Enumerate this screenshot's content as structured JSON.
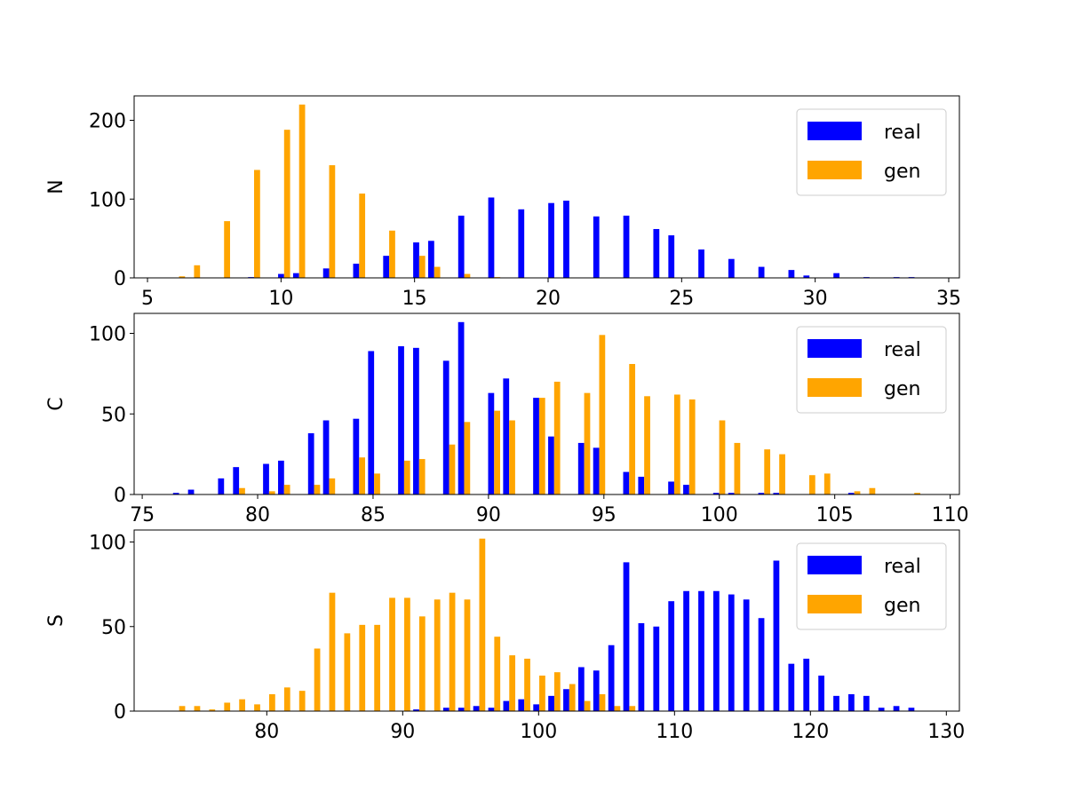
{
  "chart_data": [
    {
      "type": "histogram",
      "ylabel": "N",
      "bins": [
        5.9,
        6.462,
        7.024,
        7.586,
        8.148,
        8.71,
        9.272,
        9.834,
        10.396,
        10.958,
        11.52,
        12.082,
        12.644,
        13.206,
        13.768,
        14.33,
        14.892,
        15.454,
        16.016,
        16.578,
        17.14,
        17.702,
        18.264,
        18.826,
        19.388,
        19.95,
        20.512,
        21.074,
        21.636,
        22.198,
        22.76,
        23.322,
        23.884,
        24.446,
        25.008,
        25.57,
        26.132,
        26.694,
        27.256,
        27.818,
        28.38,
        28.942,
        29.504,
        30.066,
        30.628,
        31.19,
        31.752,
        32.314,
        32.876,
        33.438,
        34.0
      ],
      "series": [
        {
          "name": "real",
          "color": "#0000ff",
          "values": [
            0,
            0,
            0,
            0,
            0,
            1,
            0,
            5,
            6,
            0,
            12,
            0,
            18,
            0,
            28,
            0,
            45,
            47,
            0,
            79,
            0,
            102,
            0,
            87,
            0,
            95,
            98,
            0,
            78,
            0,
            79,
            0,
            62,
            54,
            0,
            36,
            0,
            24,
            0,
            14,
            0,
            10,
            3,
            0,
            6,
            0,
            1,
            0,
            1,
            1
          ]
        },
        {
          "name": "gen",
          "color": "#ffa500",
          "values": [
            2,
            16,
            0,
            72,
            0,
            137,
            0,
            188,
            220,
            0,
            143,
            0,
            107,
            0,
            60,
            0,
            28,
            14,
            0,
            5,
            0,
            1,
            0,
            0,
            0,
            0,
            0,
            0,
            0,
            0,
            0,
            0,
            0,
            0,
            0,
            0,
            0,
            0,
            0,
            0,
            0,
            0,
            0,
            0,
            0,
            0,
            0,
            0,
            0,
            0
          ]
        }
      ],
      "xlim": [
        4.5,
        35.4
      ],
      "xticks": [
        5,
        10,
        15,
        20,
        25,
        30,
        35
      ],
      "ylim": [
        0,
        231
      ],
      "yticks": [
        0,
        100,
        200
      ],
      "legend": "upper right"
    },
    {
      "type": "histogram",
      "ylabel": "C",
      "bins": [
        76.27,
        76.92,
        77.57,
        78.22,
        78.87,
        79.52,
        80.17,
        80.82,
        81.47,
        82.12,
        82.77,
        83.42,
        84.07,
        84.72,
        85.37,
        86.02,
        86.67,
        87.32,
        87.97,
        88.62,
        89.27,
        89.92,
        90.57,
        91.22,
        91.87,
        92.52,
        93.17,
        93.82,
        94.47,
        95.12,
        95.77,
        96.42,
        97.07,
        97.72,
        98.37,
        99.02,
        99.67,
        100.32,
        100.97,
        101.62,
        102.27,
        102.92,
        103.57,
        104.22,
        104.87,
        105.52,
        106.17,
        106.82,
        107.47,
        108.12,
        108.77
      ],
      "series": [
        {
          "name": "real",
          "color": "#0000ff",
          "values": [
            1,
            3,
            0,
            10,
            17,
            0,
            19,
            21,
            0,
            38,
            46,
            0,
            47,
            89,
            0,
            92,
            91,
            0,
            83,
            107,
            0,
            63,
            72,
            0,
            60,
            36,
            0,
            32,
            29,
            0,
            14,
            11,
            0,
            8,
            6,
            0,
            1,
            1,
            0,
            1,
            1,
            0,
            0,
            0,
            0,
            1,
            0,
            0,
            0,
            0
          ]
        },
        {
          "name": "gen",
          "color": "#ffa500",
          "values": [
            0,
            0,
            0,
            0,
            4,
            0,
            2,
            6,
            0,
            6,
            10,
            0,
            23,
            13,
            0,
            21,
            22,
            0,
            31,
            45,
            0,
            52,
            46,
            0,
            60,
            70,
            0,
            63,
            99,
            0,
            81,
            61,
            0,
            62,
            59,
            0,
            46,
            32,
            0,
            28,
            25,
            0,
            12,
            13,
            0,
            2,
            4,
            0,
            0,
            1
          ]
        }
      ],
      "xlim": [
        74.65,
        110.4
      ],
      "xticks": [
        75,
        80,
        85,
        90,
        95,
        100,
        105,
        110
      ],
      "ylim": [
        0,
        112.4
      ],
      "yticks": [
        0,
        50,
        100
      ],
      "legend": "upper right"
    },
    {
      "type": "histogram",
      "ylabel": "S",
      "bins": [
        73,
        74.104,
        75.208,
        76.312,
        77.416,
        78.52,
        79.624,
        80.728,
        81.832,
        82.936,
        84.04,
        85.144,
        86.248,
        87.352,
        88.456,
        89.56,
        90.664,
        91.768,
        92.872,
        93.976,
        95.08,
        96.184,
        97.288,
        98.392,
        99.496,
        100.6,
        101.704,
        102.808,
        103.912,
        105.016,
        106.12,
        107.224,
        108.328,
        109.432,
        110.536,
        111.64,
        112.744,
        113.848,
        114.952,
        116.056,
        117.16,
        118.264,
        119.368,
        120.472,
        121.576,
        122.68,
        123.784,
        124.888,
        125.992,
        127.096,
        128.2
      ],
      "series": [
        {
          "name": "real",
          "color": "#0000ff",
          "values": [
            0,
            0,
            0,
            0,
            0,
            0,
            0,
            0,
            0,
            0,
            0,
            0,
            0,
            0,
            0,
            0,
            1,
            0,
            2,
            2,
            3,
            2,
            6,
            7,
            4,
            9,
            13,
            26,
            24,
            39,
            88,
            52,
            50,
            65,
            71,
            71,
            71,
            69,
            66,
            55,
            89,
            28,
            31,
            21,
            9,
            10,
            9,
            2,
            3,
            2
          ]
        },
        {
          "name": "gen",
          "color": "#ffa500",
          "values": [
            3,
            3,
            1,
            5,
            7,
            4,
            10,
            14,
            12,
            37,
            70,
            46,
            51,
            51,
            67,
            67,
            56,
            66,
            70,
            66,
            102,
            44,
            33,
            31,
            21,
            23,
            16,
            6,
            10,
            3,
            3,
            0,
            0,
            0,
            0,
            0,
            0,
            0,
            0,
            0,
            0,
            0,
            0,
            0,
            0,
            0,
            0,
            0,
            0,
            0
          ]
        }
      ],
      "xlim": [
        70.24,
        130.96
      ],
      "xticks": [
        80,
        90,
        100,
        110,
        120,
        130
      ],
      "ylim": [
        0,
        107.1
      ],
      "yticks": [
        0,
        50,
        100
      ],
      "legend": "upper right"
    }
  ]
}
